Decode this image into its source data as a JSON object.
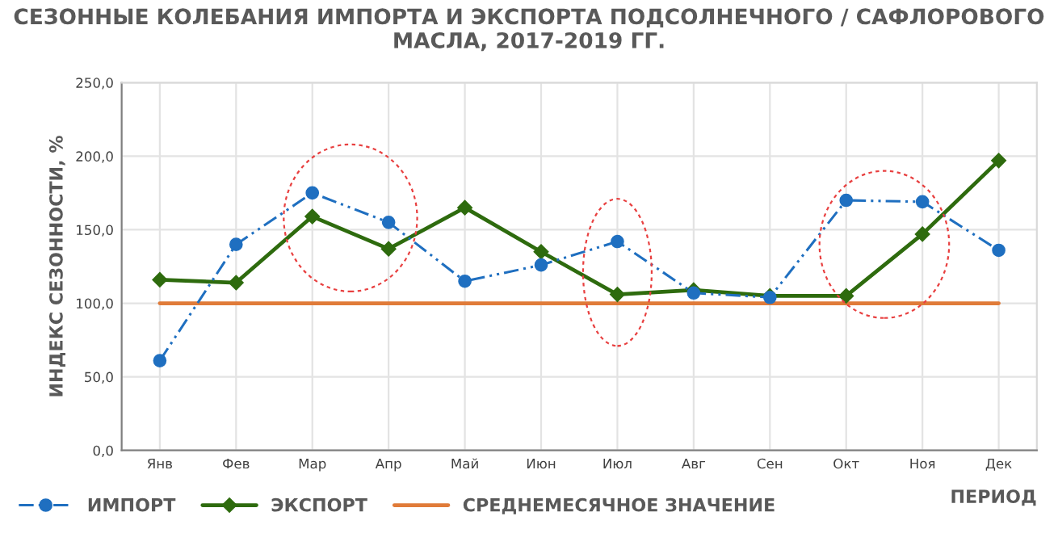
{
  "chart_data": {
    "type": "line",
    "title": "СЕЗОННЫЕ КОЛЕБАНИЯ ИМПОРТА И ЭКСПОРТА ПОДСОЛНЕЧНОГО / САФЛОРОВОГО МАСЛА, 2017-2019 ГГ.",
    "xlabel": "ПЕРИОД",
    "ylabel": "ИНДЕКС СЕЗОННОСТИ, %",
    "categories": [
      "Янв",
      "Фев",
      "Мар",
      "Апр",
      "Май",
      "Июн",
      "Июл",
      "Авг",
      "Сен",
      "Окт",
      "Ноя",
      "Дек"
    ],
    "series": [
      {
        "name": "ИМПОРТ",
        "color": "#1f6fc0",
        "marker": "circle",
        "line_style": "dashdot",
        "values": [
          61,
          140,
          175,
          155,
          115,
          126,
          142,
          107,
          104,
          170,
          169,
          136
        ]
      },
      {
        "name": "ЭКСПОРТ",
        "color": "#2e6b0e",
        "marker": "diamond",
        "line_style": "solid",
        "values": [
          116,
          114,
          159,
          137,
          165,
          135,
          106,
          109,
          105,
          105,
          147,
          197
        ]
      },
      {
        "name": "СРЕДНЕМЕСЯЧНОЕ ЗНАЧЕНИЕ",
        "color": "#e07b39",
        "marker": "none",
        "line_style": "solid",
        "values": [
          100,
          100,
          100,
          100,
          100,
          100,
          100,
          100,
          100,
          100,
          100,
          100
        ]
      }
    ],
    "ylim": [
      0,
      250
    ],
    "yticks": [
      {
        "value": 0,
        "label": "0,0"
      },
      {
        "value": 50,
        "label": "50,0"
      },
      {
        "value": 100,
        "label": "100,0"
      },
      {
        "value": 150,
        "label": "150,0"
      },
      {
        "value": 200,
        "label": "200,0"
      },
      {
        "value": 250,
        "label": "250,0"
      }
    ],
    "grid": true,
    "legend": "bottom left"
  }
}
